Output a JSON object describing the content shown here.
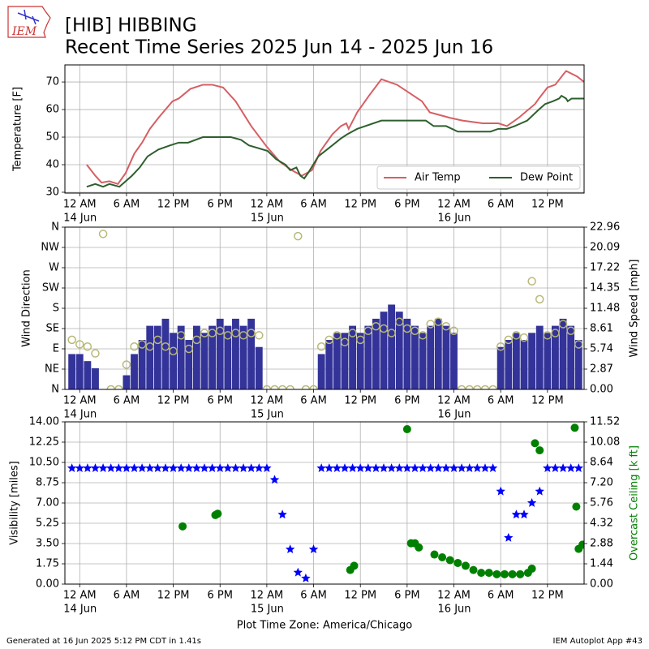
{
  "header": {
    "logo": "IEM",
    "title": "[HIB] HIBBING",
    "subtitle": "Recent Time Series 2025 Jun 14 - 2025 Jun 16"
  },
  "footer": {
    "left": "Generated at 16 Jun 2025 5:12 PM CDT in 1.41s",
    "right": "IEM Autoplot App #43"
  },
  "chart_data": [
    {
      "type": "line",
      "ylabel": "Temperature [F]",
      "grid": true,
      "legend": "lower right",
      "xlim": [
        -1.9,
        64.7
      ],
      "xticks": [
        {
          "value": 0,
          "label": "12 AM"
        },
        {
          "value": 6,
          "label": "6 AM"
        },
        {
          "value": 12,
          "label": "12 PM"
        },
        {
          "value": 18,
          "label": "6 PM"
        },
        {
          "value": 24,
          "label": "12 AM"
        },
        {
          "value": 30,
          "label": "6 AM"
        },
        {
          "value": 36,
          "label": "12 PM"
        },
        {
          "value": 42,
          "label": "6 PM"
        },
        {
          "value": 48,
          "label": "12 AM"
        },
        {
          "value": 54,
          "label": "6 AM"
        },
        {
          "value": 60,
          "label": "12 PM"
        }
      ],
      "xtick_dates": [
        {
          "value": 0,
          "label": "14 Jun"
        },
        {
          "value": 24,
          "label": "15 Jun"
        },
        {
          "value": 48,
          "label": "16 Jun"
        }
      ],
      "ylim": [
        29.7,
        76.2
      ],
      "yticks": [
        30,
        40,
        50,
        60,
        70
      ],
      "series": [
        {
          "name": "Air Temp",
          "color": "#d65f63",
          "x": [
            0.9,
            2.0,
            2.8,
            3.8,
            4.9,
            5.9,
            7.0,
            8.0,
            9.0,
            10.1,
            11.9,
            12.7,
            14.2,
            15.8,
            17.0,
            18.4,
            20.0,
            22.0,
            24.0,
            25.7,
            27.2,
            28.5,
            29.8,
            30.9,
            32.4,
            33.5,
            34.2,
            34.5,
            35.6,
            37.1,
            38.7,
            40.7,
            43.9,
            44.9,
            47.5,
            49.1,
            51.7,
            53.7,
            54.8,
            56.3,
            58.4,
            58.9,
            60.0,
            61.0,
            62.1,
            62.4,
            63.1,
            63.8,
            64.7
          ],
          "values": [
            40,
            36,
            33.5,
            34,
            33,
            37,
            44,
            48,
            53,
            57,
            63,
            64,
            67.5,
            69,
            69,
            68,
            63,
            54,
            46.5,
            41,
            38,
            36,
            38,
            45,
            51,
            54,
            55,
            53,
            59,
            65,
            71,
            69,
            63,
            59,
            57,
            56,
            55,
            55,
            54,
            57,
            62,
            64,
            68,
            69,
            73,
            74,
            73,
            72,
            70
          ]
        },
        {
          "name": "Dew Point",
          "color": "#2e5f2e",
          "x": [
            0.9,
            2.0,
            3.0,
            3.8,
            5.1,
            6.7,
            7.7,
            8.7,
            10.1,
            11.6,
            12.7,
            13.9,
            15.8,
            19.4,
            20.7,
            21.7,
            24.1,
            25.2,
            26.4,
            27.0,
            27.8,
            28.3,
            28.8,
            29.3,
            30.6,
            32.4,
            33.5,
            34.3,
            35.6,
            38.7,
            44.4,
            45.4,
            47.0,
            48.5,
            52.7,
            53.7,
            54.8,
            55.8,
            57.4,
            58.9,
            59.7,
            60.7,
            61.5,
            61.8,
            62.4,
            62.6,
            63.1,
            64.7
          ],
          "values": [
            32,
            33,
            32,
            33,
            32,
            36,
            39,
            43,
            45.5,
            47,
            48,
            48,
            50,
            50,
            49,
            47,
            45,
            42,
            40,
            38,
            39,
            36,
            35,
            37,
            43,
            47,
            49.5,
            51,
            53,
            56,
            56,
            54,
            54,
            52,
            52,
            53,
            53,
            54,
            56,
            60,
            62,
            63,
            64,
            65,
            64,
            63,
            64,
            64
          ]
        }
      ]
    },
    {
      "type": "combo",
      "ylabel": "Wind Direction",
      "y2label": "Wind Speed [mph]",
      "grid": true,
      "xlim": [
        -1.9,
        64.7
      ],
      "xticks": [
        {
          "value": 0,
          "label": "12 AM"
        },
        {
          "value": 6,
          "label": "6 AM"
        },
        {
          "value": 12,
          "label": "12 PM"
        },
        {
          "value": 18,
          "label": "6 PM"
        },
        {
          "value": 24,
          "label": "12 AM"
        },
        {
          "value": 30,
          "label": "6 AM"
        },
        {
          "value": 36,
          "label": "12 PM"
        },
        {
          "value": 42,
          "label": "6 PM"
        },
        {
          "value": 48,
          "label": "12 AM"
        },
        {
          "value": 54,
          "label": "6 AM"
        },
        {
          "value": 60,
          "label": "12 PM"
        }
      ],
      "xtick_dates": [
        {
          "value": 0,
          "label": "14 Jun"
        },
        {
          "value": 24,
          "label": "15 Jun"
        },
        {
          "value": 48,
          "label": "16 Jun"
        }
      ],
      "ylim": [
        0,
        360
      ],
      "yticks": [
        {
          "value": 0,
          "label": "N"
        },
        {
          "value": 45,
          "label": "NE"
        },
        {
          "value": 90,
          "label": "E"
        },
        {
          "value": 135,
          "label": "SE"
        },
        {
          "value": 180,
          "label": "S"
        },
        {
          "value": 225,
          "label": "SW"
        },
        {
          "value": 270,
          "label": "W"
        },
        {
          "value": 315,
          "label": "NW"
        },
        {
          "value": 360,
          "label": "N"
        }
      ],
      "y2lim": [
        0,
        22.96
      ],
      "y2ticks": [
        {
          "value": 0,
          "label": "0.00"
        },
        2.87,
        5.74,
        8.61,
        11.48,
        14.35,
        17.22,
        20.09,
        22.96
      ],
      "x": [
        -1,
        0,
        1,
        2,
        3,
        4,
        5,
        6,
        7,
        8,
        9,
        10,
        11,
        12,
        13,
        14,
        15,
        16,
        17,
        18,
        19,
        20,
        21,
        22,
        23,
        24,
        25,
        26,
        27,
        28,
        29,
        30,
        31,
        32,
        33,
        34,
        35,
        36,
        37,
        38,
        39,
        40,
        41,
        42,
        43,
        44,
        45,
        46,
        47,
        48,
        49,
        50,
        51,
        52,
        53,
        54,
        55,
        56,
        57,
        58,
        59,
        60,
        61,
        62,
        63,
        64
      ],
      "series": [
        {
          "kind": "bar",
          "axis": "y2",
          "color": "#333399",
          "values": [
            5,
            5,
            4,
            3,
            0,
            0,
            0,
            2,
            5,
            7,
            9,
            9,
            10,
            8,
            9,
            7,
            9,
            8,
            9,
            10,
            9,
            10,
            9,
            10,
            6,
            0,
            0,
            0,
            0,
            0,
            0,
            0,
            5,
            7,
            8,
            8,
            9,
            8,
            9,
            10,
            11,
            12,
            11,
            10,
            9,
            8,
            9,
            10,
            9,
            8,
            0,
            0,
            0,
            0,
            0,
            6,
            7,
            8,
            7,
            8,
            9,
            8,
            9,
            10,
            9,
            7
          ]
        },
        {
          "kind": "scatter",
          "marker": "circle",
          "color": "#b8b877",
          "values": [
            110,
            100,
            95,
            80,
            345,
            0,
            0,
            55,
            95,
            100,
            95,
            110,
            95,
            85,
            120,
            90,
            110,
            125,
            125,
            130,
            120,
            125,
            120,
            125,
            120,
            0,
            0,
            0,
            0,
            340,
            0,
            0,
            95,
            110,
            120,
            105,
            125,
            110,
            130,
            140,
            135,
            125,
            150,
            135,
            130,
            120,
            145,
            150,
            140,
            130,
            0,
            0,
            0,
            0,
            0,
            95,
            110,
            120,
            115,
            240,
            200,
            120,
            125,
            145,
            130,
            100
          ]
        }
      ]
    },
    {
      "type": "scatter",
      "ylabel": "Visibility [miles]",
      "y2label": "Overcast Ceiling [k ft]",
      "y2label_color": "green",
      "xlabel": "Plot Time Zone: America/Chicago",
      "grid": true,
      "xlim": [
        -1.9,
        64.7
      ],
      "xticks": [
        {
          "value": 0,
          "label": "12 AM"
        },
        {
          "value": 6,
          "label": "6 AM"
        },
        {
          "value": 12,
          "label": "12 PM"
        },
        {
          "value": 18,
          "label": "6 PM"
        },
        {
          "value": 24,
          "label": "12 AM"
        },
        {
          "value": 30,
          "label": "6 AM"
        },
        {
          "value": 36,
          "label": "12 PM"
        },
        {
          "value": 42,
          "label": "6 PM"
        },
        {
          "value": 48,
          "label": "12 AM"
        },
        {
          "value": 54,
          "label": "6 AM"
        },
        {
          "value": 60,
          "label": "12 PM"
        }
      ],
      "xtick_dates": [
        {
          "value": 0,
          "label": "14 Jun"
        },
        {
          "value": 24,
          "label": "15 Jun"
        },
        {
          "value": 48,
          "label": "16 Jun"
        }
      ],
      "ylim": [
        0,
        14
      ],
      "yticks": [
        {
          "value": 0,
          "label": "0.00"
        },
        1.75,
        {
          "value": 3.5,
          "label": "3.50"
        },
        5.25,
        {
          "value": 7,
          "label": "7.00"
        },
        8.75,
        {
          "value": 10.5,
          "label": "10.50"
        },
        12.25,
        {
          "value": 14,
          "label": "14.00"
        }
      ],
      "y2lim": [
        0,
        11.52
      ],
      "y2ticks": [
        {
          "value": 0,
          "label": "0.00"
        },
        1.44,
        2.88,
        4.32,
        5.76,
        {
          "value": 7.2,
          "label": "7.20"
        },
        8.64,
        10.08,
        11.52
      ],
      "series": [
        {
          "kind": "scatter",
          "marker": "star",
          "color": "blue",
          "x": [
            -1,
            0,
            1,
            2,
            3,
            4,
            5,
            6,
            7,
            8,
            9,
            10,
            11,
            12,
            13,
            14,
            15,
            16,
            17,
            18,
            19,
            20,
            21,
            22,
            23,
            24,
            25,
            26,
            27,
            28,
            29,
            30,
            31,
            32,
            33,
            34,
            35,
            36,
            37,
            38,
            39,
            40,
            41,
            42,
            43,
            44,
            45,
            46,
            47,
            48,
            49,
            50,
            51,
            52,
            53,
            54,
            55,
            56,
            57,
            58,
            59,
            60,
            61,
            62,
            63,
            64
          ],
          "values": [
            10,
            10,
            10,
            10,
            10,
            10,
            10,
            10,
            10,
            10,
            10,
            10,
            10,
            10,
            10,
            10,
            10,
            10,
            10,
            10,
            10,
            10,
            10,
            10,
            10,
            10,
            9,
            6,
            3,
            1,
            0.5,
            3,
            10,
            10,
            10,
            10,
            10,
            10,
            10,
            10,
            10,
            10,
            10,
            10,
            10,
            10,
            10,
            10,
            10,
            10,
            10,
            10,
            10,
            10,
            10,
            8,
            4,
            6,
            6,
            7,
            8,
            10,
            10,
            10,
            10,
            10
          ]
        },
        {
          "kind": "scatter",
          "marker": "circle-filled",
          "color": "green",
          "axis": "y2",
          "x": [
            13.2,
            17.4,
            17.7,
            34.7,
            35.2,
            42.0,
            42.5,
            43.0,
            43.5,
            45.5,
            46.5,
            47.5,
            48.5,
            49.5,
            50.5,
            51.5,
            52.5,
            53.5,
            54.5,
            55.5,
            56.5,
            57.5,
            58.0,
            58.4,
            59.0,
            63.5,
            63.7,
            64.0,
            64.5
          ],
          "values": [
            4.1,
            4.9,
            5.0,
            1.0,
            1.3,
            11.0,
            2.9,
            2.9,
            2.6,
            2.1,
            1.9,
            1.7,
            1.5,
            1.3,
            1.0,
            0.8,
            0.8,
            0.7,
            0.7,
            0.7,
            0.7,
            0.8,
            1.1,
            10.0,
            9.5,
            11.1,
            5.5,
            2.5,
            2.8
          ]
        }
      ]
    }
  ]
}
